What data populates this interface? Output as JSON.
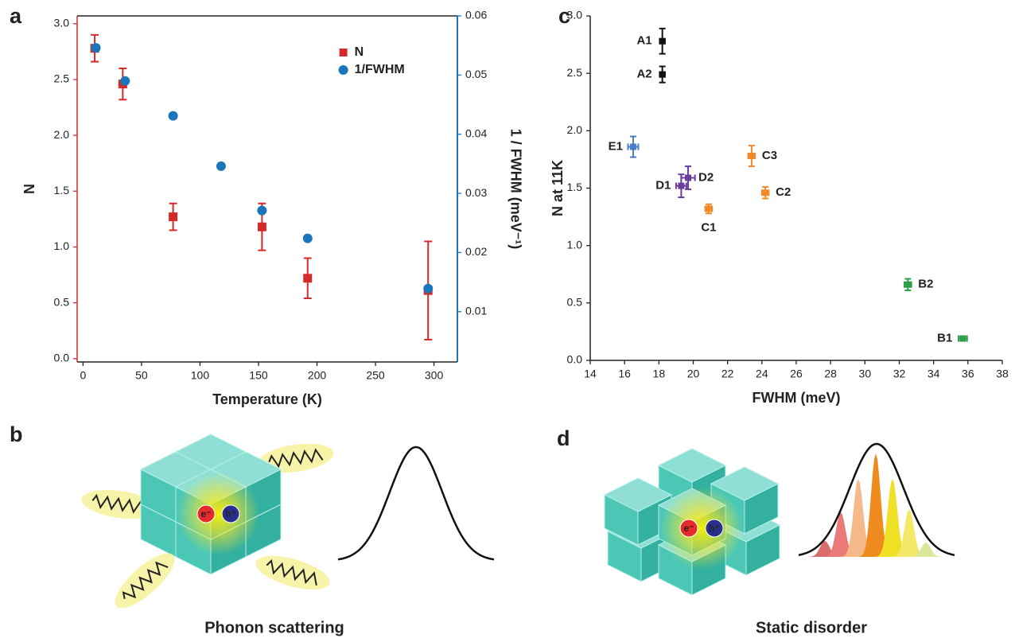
{
  "chart_data": [
    {
      "type": "scatter",
      "label": "a",
      "xlabel": "Temperature (K)",
      "ylabel": "N",
      "y2label": "1 / FWHM (meV⁻¹)",
      "xlim": [
        -5,
        320
      ],
      "xticks": [
        0,
        50,
        100,
        150,
        200,
        250,
        300
      ],
      "ylim": [
        -0.03,
        3.07
      ],
      "yticks": [
        {
          "value": 0,
          "label": "0.0"
        },
        0.5,
        {
          "value": 1,
          "label": "1.0"
        },
        1.5,
        {
          "value": 2,
          "label": "2.0"
        },
        2.5,
        {
          "value": 3,
          "label": "3.0"
        }
      ],
      "y2lim": [
        0.0015,
        0.06
      ],
      "y2ticks": [
        0.01,
        0.02,
        0.03,
        0.04,
        0.05,
        0.06
      ],
      "legend": "top-right",
      "series": [
        {
          "name": "N",
          "color": "#d42a2a",
          "marker": "square",
          "x": [
            10,
            34,
            77,
            153,
            192,
            295
          ],
          "values": [
            2.78,
            2.46,
            1.27,
            1.18,
            0.72,
            0.61
          ],
          "errors": [
            0.12,
            0.14,
            0.12,
            0.21,
            0.18,
            0.44
          ]
        },
        {
          "name": "1/FWHM",
          "color": "#1a75bb",
          "marker": "circle",
          "axis": "y2",
          "x": [
            11,
            36,
            77,
            118,
            153,
            192,
            295
          ],
          "values": [
            0.0546,
            0.049,
            0.0431,
            0.0346,
            0.0271,
            0.0224,
            0.0139
          ]
        }
      ]
    },
    {
      "type": "scatter",
      "label": "c",
      "xlabel": "FWHM (meV)",
      "ylabel": "N at 11K",
      "xlim": [
        14,
        38
      ],
      "xticks": [
        14,
        16,
        18,
        20,
        22,
        24,
        26,
        28,
        30,
        32,
        34,
        36,
        38
      ],
      "ylim": [
        0,
        3
      ],
      "yticks": [
        {
          "value": 0,
          "label": "0.0"
        },
        0.5,
        {
          "value": 1,
          "label": "1.0"
        },
        1.5,
        {
          "value": 2,
          "label": "2.0"
        },
        2.5,
        {
          "value": 3,
          "label": "3.0"
        }
      ],
      "series": [
        {
          "labels": [
            "A1",
            "A2"
          ],
          "color": "#111111",
          "marker": "square",
          "x": [
            18.2,
            18.2
          ],
          "values": [
            2.78,
            2.49
          ],
          "xerr": [
            0.15,
            0.15
          ],
          "yerr": [
            0.11,
            0.07
          ]
        },
        {
          "labels": [
            "B1",
            "B2"
          ],
          "color": "#2e9e4a",
          "marker": "square",
          "x": [
            35.7,
            32.5
          ],
          "values": [
            0.19,
            0.66
          ],
          "xerr": [
            0.25,
            0.2
          ],
          "yerr": [
            0.02,
            0.05
          ]
        },
        {
          "labels": [
            "C1",
            "C2",
            "C3"
          ],
          "color": "#ef8a2a",
          "marker": "square",
          "x": [
            20.9,
            24.2,
            23.4
          ],
          "values": [
            1.32,
            1.46,
            1.78
          ],
          "xerr": [
            0.2,
            0.2,
            0.2
          ],
          "yerr": [
            0.04,
            0.05,
            0.09
          ]
        },
        {
          "labels": [
            "D1",
            "D2"
          ],
          "color": "#6a3d9a",
          "marker": "square",
          "x": [
            19.3,
            19.7
          ],
          "values": [
            1.52,
            1.59
          ],
          "xerr": [
            0.3,
            0.4
          ],
          "yerr": [
            0.1,
            0.1
          ]
        },
        {
          "labels": [
            "E1"
          ],
          "color": "#4a7cc4",
          "marker": "square",
          "x": [
            16.5
          ],
          "values": [
            1.86
          ],
          "xerr": [
            0.3
          ],
          "yerr": [
            0.09
          ]
        }
      ]
    }
  ],
  "diagrams": [
    {
      "label": "b",
      "caption": "Phonon scattering",
      "electron": "e⁻",
      "hole": "h⁺"
    },
    {
      "label": "d",
      "caption": "Static disorder",
      "electron": "e⁻",
      "hole": "h⁺"
    }
  ]
}
